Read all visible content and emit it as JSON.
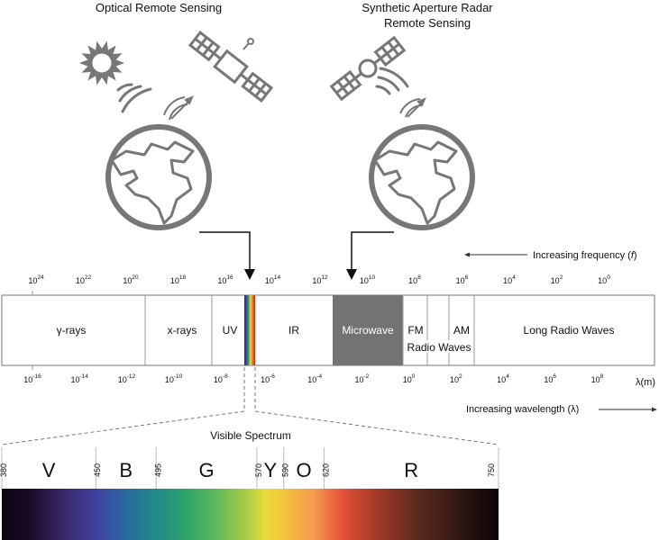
{
  "titles": {
    "optical": "Optical Remote Sensing",
    "sar_line1": "Synthetic Aperture Radar",
    "sar_line2": "Remote Sensing"
  },
  "freq_caption": "Increasing frequency (",
  "freq_symbol": "f",
  "freq_close": ")",
  "wave_caption": "Increasing wavelength (λ)",
  "wave_unit": "λ(m)",
  "visible_title": "Visible Spectrum",
  "freq_ticks": [
    {
      "base": "10",
      "exp": "24"
    },
    {
      "base": "10",
      "exp": "22"
    },
    {
      "base": "10",
      "exp": "20"
    },
    {
      "base": "10",
      "exp": "18"
    },
    {
      "base": "10",
      "exp": "16"
    },
    {
      "base": "10",
      "exp": "14"
    },
    {
      "base": "10",
      "exp": "12"
    },
    {
      "base": "10",
      "exp": "10"
    },
    {
      "base": "10",
      "exp": "8"
    },
    {
      "base": "10",
      "exp": "6"
    },
    {
      "base": "10",
      "exp": "4"
    },
    {
      "base": "10",
      "exp": "2"
    },
    {
      "base": "10",
      "exp": "0"
    }
  ],
  "wave_ticks": [
    {
      "base": "10",
      "exp": "-16"
    },
    {
      "base": "10",
      "exp": "-14"
    },
    {
      "base": "10",
      "exp": "-12"
    },
    {
      "base": "10",
      "exp": "-10"
    },
    {
      "base": "10",
      "exp": "-8"
    },
    {
      "base": "10",
      "exp": "-6"
    },
    {
      "base": "10",
      "exp": "-4"
    },
    {
      "base": "10",
      "exp": "-2"
    },
    {
      "base": "10",
      "exp": "0"
    },
    {
      "base": "10",
      "exp": "2"
    },
    {
      "base": "10",
      "exp": "4"
    },
    {
      "base": "10",
      "exp": "6"
    },
    {
      "base": "10",
      "exp": "8"
    }
  ],
  "bands": {
    "gamma": "γ-rays",
    "xrays": "x-rays",
    "uv": "UV",
    "ir": "IR",
    "microwave": "Microwave",
    "fm": "FM",
    "am": "AM",
    "radio_waves": "Radio Waves",
    "long_radio": "Long Radio Waves"
  },
  "visible_colors": [
    {
      "letter": "V"
    },
    {
      "letter": "B"
    },
    {
      "letter": "G"
    },
    {
      "letter": "Y"
    },
    {
      "letter": "O"
    },
    {
      "letter": "R"
    }
  ],
  "visible_wavelengths": [
    "380",
    "450",
    "495",
    "570",
    "590",
    "620",
    "750"
  ],
  "colors": {
    "icon_gray": "#777777",
    "microwave_fill": "#737373",
    "microwave_text": "#ffffff"
  }
}
